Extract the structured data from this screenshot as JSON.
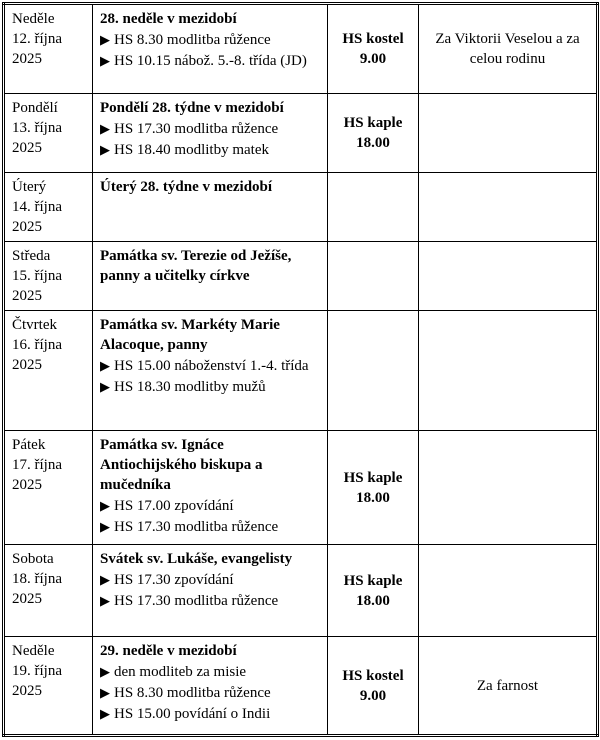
{
  "days": [
    {
      "day": "Neděle",
      "date": "12. října",
      "year": "2025",
      "title": "28. neděle v mezidobí",
      "items": [
        "HS 8.30 modlitba růžence",
        "HS 10.15 nábož. 5.-8. třída (JD)"
      ],
      "mass": [
        "HS kostel",
        "9.00"
      ],
      "intention": "Za Viktorii Veselou a za celou rodinu"
    },
    {
      "day": "Pondělí",
      "date": "13. října",
      "year": "2025",
      "title": "Pondělí 28. týdne v mezidobí",
      "items": [
        "HS 17.30 modlitba růžence",
        "HS 18.40 modlitby matek"
      ],
      "mass": [
        "HS kaple",
        "18.00"
      ],
      "intention": ""
    },
    {
      "day": "Úterý",
      "date": "14. října",
      "year": "2025",
      "title": "Úterý 28. týdne v mezidobí",
      "items": [],
      "mass": [
        "",
        ""
      ],
      "intention": ""
    },
    {
      "day": "Středa",
      "date": "15. října",
      "year": "2025",
      "title": "Památka sv. Terezie od Ježíše, panny a učitelky církve",
      "items": [],
      "mass": [
        "",
        ""
      ],
      "intention": ""
    },
    {
      "day": "Čtvrtek",
      "date": "16. října",
      "year": "2025",
      "title": "Památka sv. Markéty Marie Alacoque, panny",
      "items": [
        "HS 15.00 náboženství 1.-4. třída",
        "HS 18.30 modlitby mužů"
      ],
      "mass": [
        "",
        ""
      ],
      "intention": ""
    },
    {
      "day": "Pátek",
      "date": "17. října",
      "year": "2025",
      "title": "Památka sv. Ignáce Antiochijského biskupa a mučedníka",
      "items": [
        "HS 17.00 zpovídání",
        "HS 17.30 modlitba růžence"
      ],
      "mass": [
        "HS kaple",
        "18.00"
      ],
      "intention": ""
    },
    {
      "day": "Sobota",
      "date": "18. října",
      "year": "2025",
      "title": "Svátek sv. Lukáše, evangelisty",
      "items": [
        "HS 17.30 zpovídání",
        "HS 17.30 modlitba růžence"
      ],
      "mass": [
        "HS kaple",
        "18.00"
      ],
      "intention": ""
    },
    {
      "day": "Neděle",
      "date": "19. října",
      "year": "2025",
      "title": "29. neděle v mezidobí",
      "items": [
        "den modliteb za misie",
        "HS 8.30 modlitba růžence",
        "HS 15.00 povídání o Indii"
      ],
      "mass": [
        "HS kostel",
        "9.00"
      ],
      "intention": "Za farnost"
    }
  ],
  "bullet_icon": "black-right-pointing-triangle"
}
